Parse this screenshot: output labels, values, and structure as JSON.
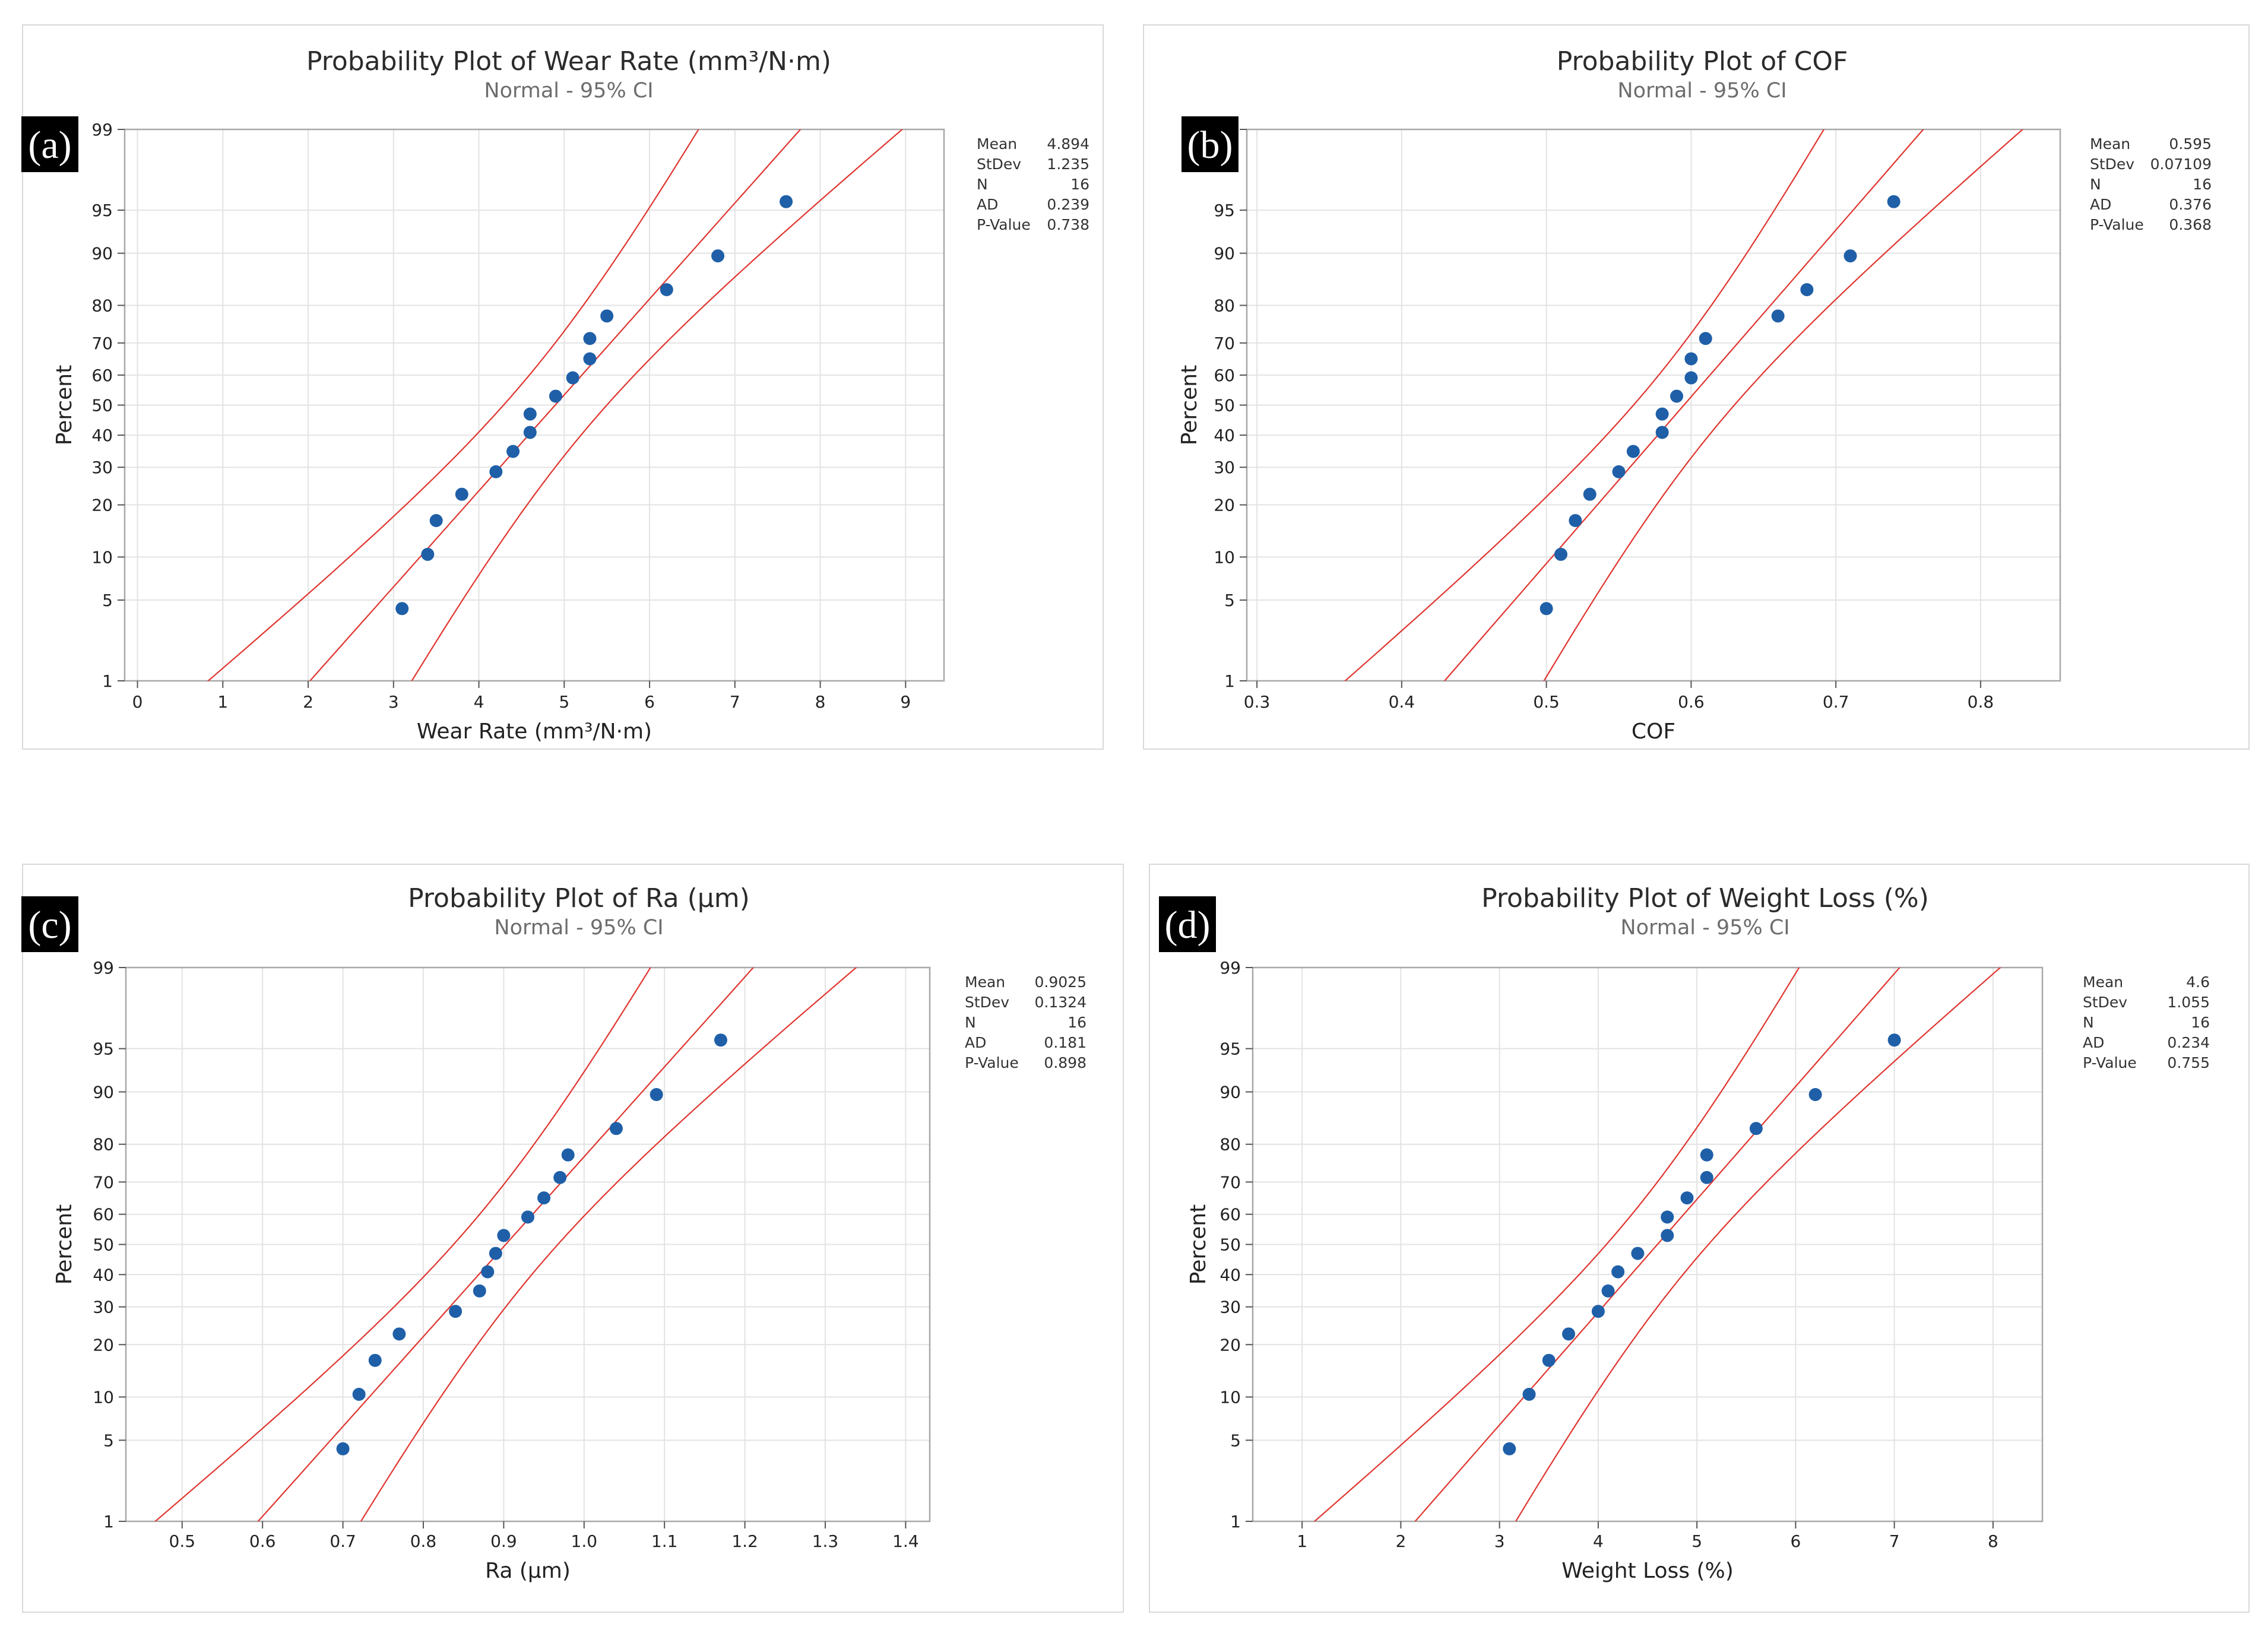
{
  "colors": {
    "point": "#1f5fa8",
    "ci_line": "#e0352f",
    "grid": "#e3e3e3",
    "frame": "#a8a8a8",
    "panel_border": "#d9d9d9",
    "label_bg": "#000000"
  },
  "chart_data": [
    {
      "type": "scatter",
      "panel_label": "(a)",
      "title": "Probability Plot of Wear Rate (mm³/N·m)",
      "subtitle": "Normal - 95% CI",
      "xlabel": "Wear Rate (mm³/N·m)",
      "ylabel": "Percent",
      "xlim": [
        -0.15,
        9.45
      ],
      "xticks": [
        0,
        1,
        2,
        3,
        4,
        5,
        6,
        7,
        8,
        9
      ],
      "yticks": [
        1,
        5,
        10,
        20,
        30,
        40,
        50,
        60,
        70,
        80,
        90,
        95,
        99
      ],
      "points": [
        {
          "x": 3.1,
          "y": 4.3
        },
        {
          "x": 3.4,
          "y": 10.4
        },
        {
          "x": 3.5,
          "y": 16.5
        },
        {
          "x": 3.8,
          "y": 22.6
        },
        {
          "x": 4.2,
          "y": 28.7
        },
        {
          "x": 4.4,
          "y": 34.8
        },
        {
          "x": 4.6,
          "y": 40.9
        },
        {
          "x": 4.6,
          "y": 47.0
        },
        {
          "x": 4.9,
          "y": 53.0
        },
        {
          "x": 5.1,
          "y": 59.1
        },
        {
          "x": 5.3,
          "y": 65.2
        },
        {
          "x": 5.3,
          "y": 71.3
        },
        {
          "x": 5.5,
          "y": 77.4
        },
        {
          "x": 6.2,
          "y": 83.5
        },
        {
          "x": 6.8,
          "y": 89.6
        },
        {
          "x": 7.6,
          "y": 95.7
        }
      ],
      "mean": 4.894,
      "stdev": 1.235,
      "n": 16,
      "stats": [
        {
          "label": "Mean",
          "value": "4.894"
        },
        {
          "label": "StDev",
          "value": "1.235"
        },
        {
          "label": "N",
          "value": "16"
        },
        {
          "label": "AD",
          "value": "0.239"
        },
        {
          "label": "P-Value",
          "value": "0.738"
        }
      ]
    },
    {
      "type": "scatter",
      "panel_label": "(b)",
      "title": "Probability Plot of COF",
      "subtitle": "Normal - 95% CI",
      "xlabel": "COF",
      "ylabel": "Percent",
      "xlim": [
        0.293,
        0.855
      ],
      "xticks": [
        0.3,
        0.4,
        0.5,
        0.6,
        0.7,
        0.8
      ],
      "yticks": [
        1,
        5,
        10,
        20,
        30,
        40,
        50,
        60,
        70,
        80,
        90,
        95,
        99
      ],
      "points": [
        {
          "x": 0.5,
          "y": 4.3
        },
        {
          "x": 0.51,
          "y": 10.4
        },
        {
          "x": 0.52,
          "y": 16.5
        },
        {
          "x": 0.53,
          "y": 22.6
        },
        {
          "x": 0.55,
          "y": 28.7
        },
        {
          "x": 0.56,
          "y": 34.8
        },
        {
          "x": 0.58,
          "y": 40.9
        },
        {
          "x": 0.58,
          "y": 47.0
        },
        {
          "x": 0.59,
          "y": 53.0
        },
        {
          "x": 0.6,
          "y": 59.1
        },
        {
          "x": 0.6,
          "y": 65.2
        },
        {
          "x": 0.61,
          "y": 71.3
        },
        {
          "x": 0.66,
          "y": 77.4
        },
        {
          "x": 0.68,
          "y": 83.5
        },
        {
          "x": 0.71,
          "y": 89.6
        },
        {
          "x": 0.74,
          "y": 95.7
        }
      ],
      "mean": 0.595,
      "stdev": 0.07109,
      "n": 16,
      "stats": [
        {
          "label": "Mean",
          "value": "0.595"
        },
        {
          "label": "StDev",
          "value": "0.07109"
        },
        {
          "label": "N",
          "value": "16"
        },
        {
          "label": "AD",
          "value": "0.376"
        },
        {
          "label": "P-Value",
          "value": "0.368"
        }
      ]
    },
    {
      "type": "scatter",
      "panel_label": "(c)",
      "title": "Probability Plot of Ra (μm)",
      "subtitle": "Normal - 95% CI",
      "xlabel": "Ra (μm)",
      "ylabel": "Percent",
      "xlim": [
        0.43,
        1.43
      ],
      "xticks": [
        0.5,
        0.6,
        0.7,
        0.8,
        0.9,
        1.0,
        1.1,
        1.2,
        1.3,
        1.4
      ],
      "xtick_labels": [
        "0.5",
        "0.6",
        "0.7",
        "0.8",
        "0.9",
        "1.0",
        "1.1",
        "1.2",
        "1.3",
        "1.4"
      ],
      "yticks": [
        1,
        5,
        10,
        20,
        30,
        40,
        50,
        60,
        70,
        80,
        90,
        95,
        99
      ],
      "points": [
        {
          "x": 0.7,
          "y": 4.3
        },
        {
          "x": 0.72,
          "y": 10.4
        },
        {
          "x": 0.74,
          "y": 16.5
        },
        {
          "x": 0.77,
          "y": 22.6
        },
        {
          "x": 0.84,
          "y": 28.7
        },
        {
          "x": 0.87,
          "y": 34.8
        },
        {
          "x": 0.88,
          "y": 40.9
        },
        {
          "x": 0.89,
          "y": 47.0
        },
        {
          "x": 0.9,
          "y": 53.0
        },
        {
          "x": 0.93,
          "y": 59.1
        },
        {
          "x": 0.95,
          "y": 65.2
        },
        {
          "x": 0.97,
          "y": 71.3
        },
        {
          "x": 0.98,
          "y": 77.4
        },
        {
          "x": 1.04,
          "y": 83.5
        },
        {
          "x": 1.09,
          "y": 89.6
        },
        {
          "x": 1.17,
          "y": 95.7
        }
      ],
      "mean": 0.9025,
      "stdev": 0.1324,
      "n": 16,
      "stats": [
        {
          "label": "Mean",
          "value": "0.9025"
        },
        {
          "label": "StDev",
          "value": "0.1324"
        },
        {
          "label": "N",
          "value": "16"
        },
        {
          "label": "AD",
          "value": "0.181"
        },
        {
          "label": "P-Value",
          "value": "0.898"
        }
      ]
    },
    {
      "type": "scatter",
      "panel_label": "(d)",
      "title": "Probability Plot of Weight Loss (%)",
      "subtitle": "Normal - 95% CI",
      "xlabel": "Weight Loss (%)",
      "ylabel": "Percent",
      "xlim": [
        0.5,
        8.5
      ],
      "xticks": [
        1,
        2,
        3,
        4,
        5,
        6,
        7,
        8
      ],
      "yticks": [
        1,
        5,
        10,
        20,
        30,
        40,
        50,
        60,
        70,
        80,
        90,
        95,
        99
      ],
      "points": [
        {
          "x": 3.1,
          "y": 4.3
        },
        {
          "x": 3.3,
          "y": 10.4
        },
        {
          "x": 3.5,
          "y": 16.5
        },
        {
          "x": 3.7,
          "y": 22.6
        },
        {
          "x": 4.0,
          "y": 28.7
        },
        {
          "x": 4.1,
          "y": 34.8
        },
        {
          "x": 4.2,
          "y": 40.9
        },
        {
          "x": 4.4,
          "y": 47.0
        },
        {
          "x": 4.7,
          "y": 53.0
        },
        {
          "x": 4.7,
          "y": 59.1
        },
        {
          "x": 4.9,
          "y": 65.2
        },
        {
          "x": 5.1,
          "y": 71.3
        },
        {
          "x": 5.1,
          "y": 77.4
        },
        {
          "x": 5.6,
          "y": 83.5
        },
        {
          "x": 6.2,
          "y": 89.6
        },
        {
          "x": 7.0,
          "y": 95.7
        }
      ],
      "mean": 4.6,
      "stdev": 1.055,
      "n": 16,
      "stats": [
        {
          "label": "Mean",
          "value": "4.6"
        },
        {
          "label": "StDev",
          "value": "1.055"
        },
        {
          "label": "N",
          "value": "16"
        },
        {
          "label": "AD",
          "value": "0.234"
        },
        {
          "label": "P-Value",
          "value": "0.755"
        }
      ]
    }
  ]
}
